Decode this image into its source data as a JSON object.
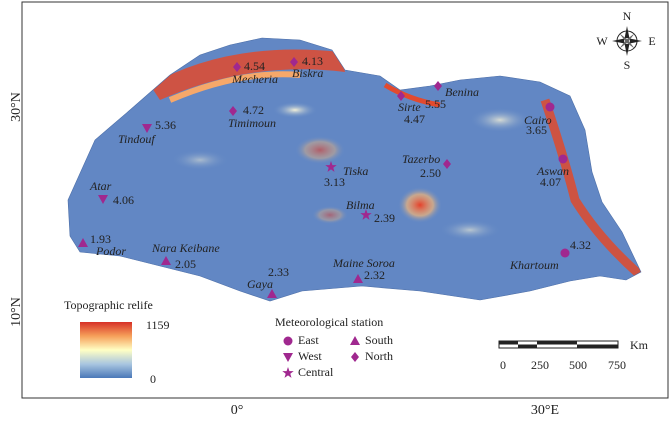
{
  "map": {
    "lat_labels": [
      "30°N",
      "10°N"
    ],
    "lon_labels": [
      "0°",
      "30°E"
    ],
    "compass": {
      "n": "N",
      "e": "E",
      "s": "S",
      "w": "W"
    },
    "relief_legend": {
      "title": "Topographic relife",
      "max": "1159",
      "min": "0"
    },
    "station_legend": {
      "title": "Meteorological station",
      "regions": [
        "East",
        "West",
        "Central",
        "South",
        "North"
      ]
    },
    "scale_bar": {
      "ticks": [
        "0",
        "250",
        "500",
        "750"
      ],
      "unit": "Km"
    },
    "stations": [
      {
        "name": "Mecheria",
        "value": "4.54",
        "region": "North"
      },
      {
        "name": "Biskra",
        "value": "4.13",
        "region": "North"
      },
      {
        "name": "Timimoun",
        "value": "4.72",
        "region": "North"
      },
      {
        "name": "Tindouf",
        "value": "5.36",
        "region": "West"
      },
      {
        "name": "Sirte",
        "value": "4.47",
        "region": "North"
      },
      {
        "name": "Benina",
        "value": "5.55",
        "region": "North"
      },
      {
        "name": "Cairo",
        "value": "3.65",
        "region": "East"
      },
      {
        "name": "Aswan",
        "value": "4.07",
        "region": "East"
      },
      {
        "name": "Khartoum",
        "value": "4.32",
        "region": "East"
      },
      {
        "name": "Tiska",
        "value": "3.13",
        "region": "Central"
      },
      {
        "name": "Tazerbo",
        "value": "2.50",
        "region": "North"
      },
      {
        "name": "Bilma",
        "value": "2.39",
        "region": "Central"
      },
      {
        "name": "Atar",
        "value": "4.06",
        "region": "West"
      },
      {
        "name": "Podor",
        "value": "1.93",
        "region": "South"
      },
      {
        "name": "Nara Keibane",
        "value": "2.05",
        "region": "South"
      },
      {
        "name": "Gaya",
        "value": "2.33",
        "region": "South"
      },
      {
        "name": "Maine Soroa",
        "value": "2.32",
        "region": "South"
      }
    ]
  }
}
